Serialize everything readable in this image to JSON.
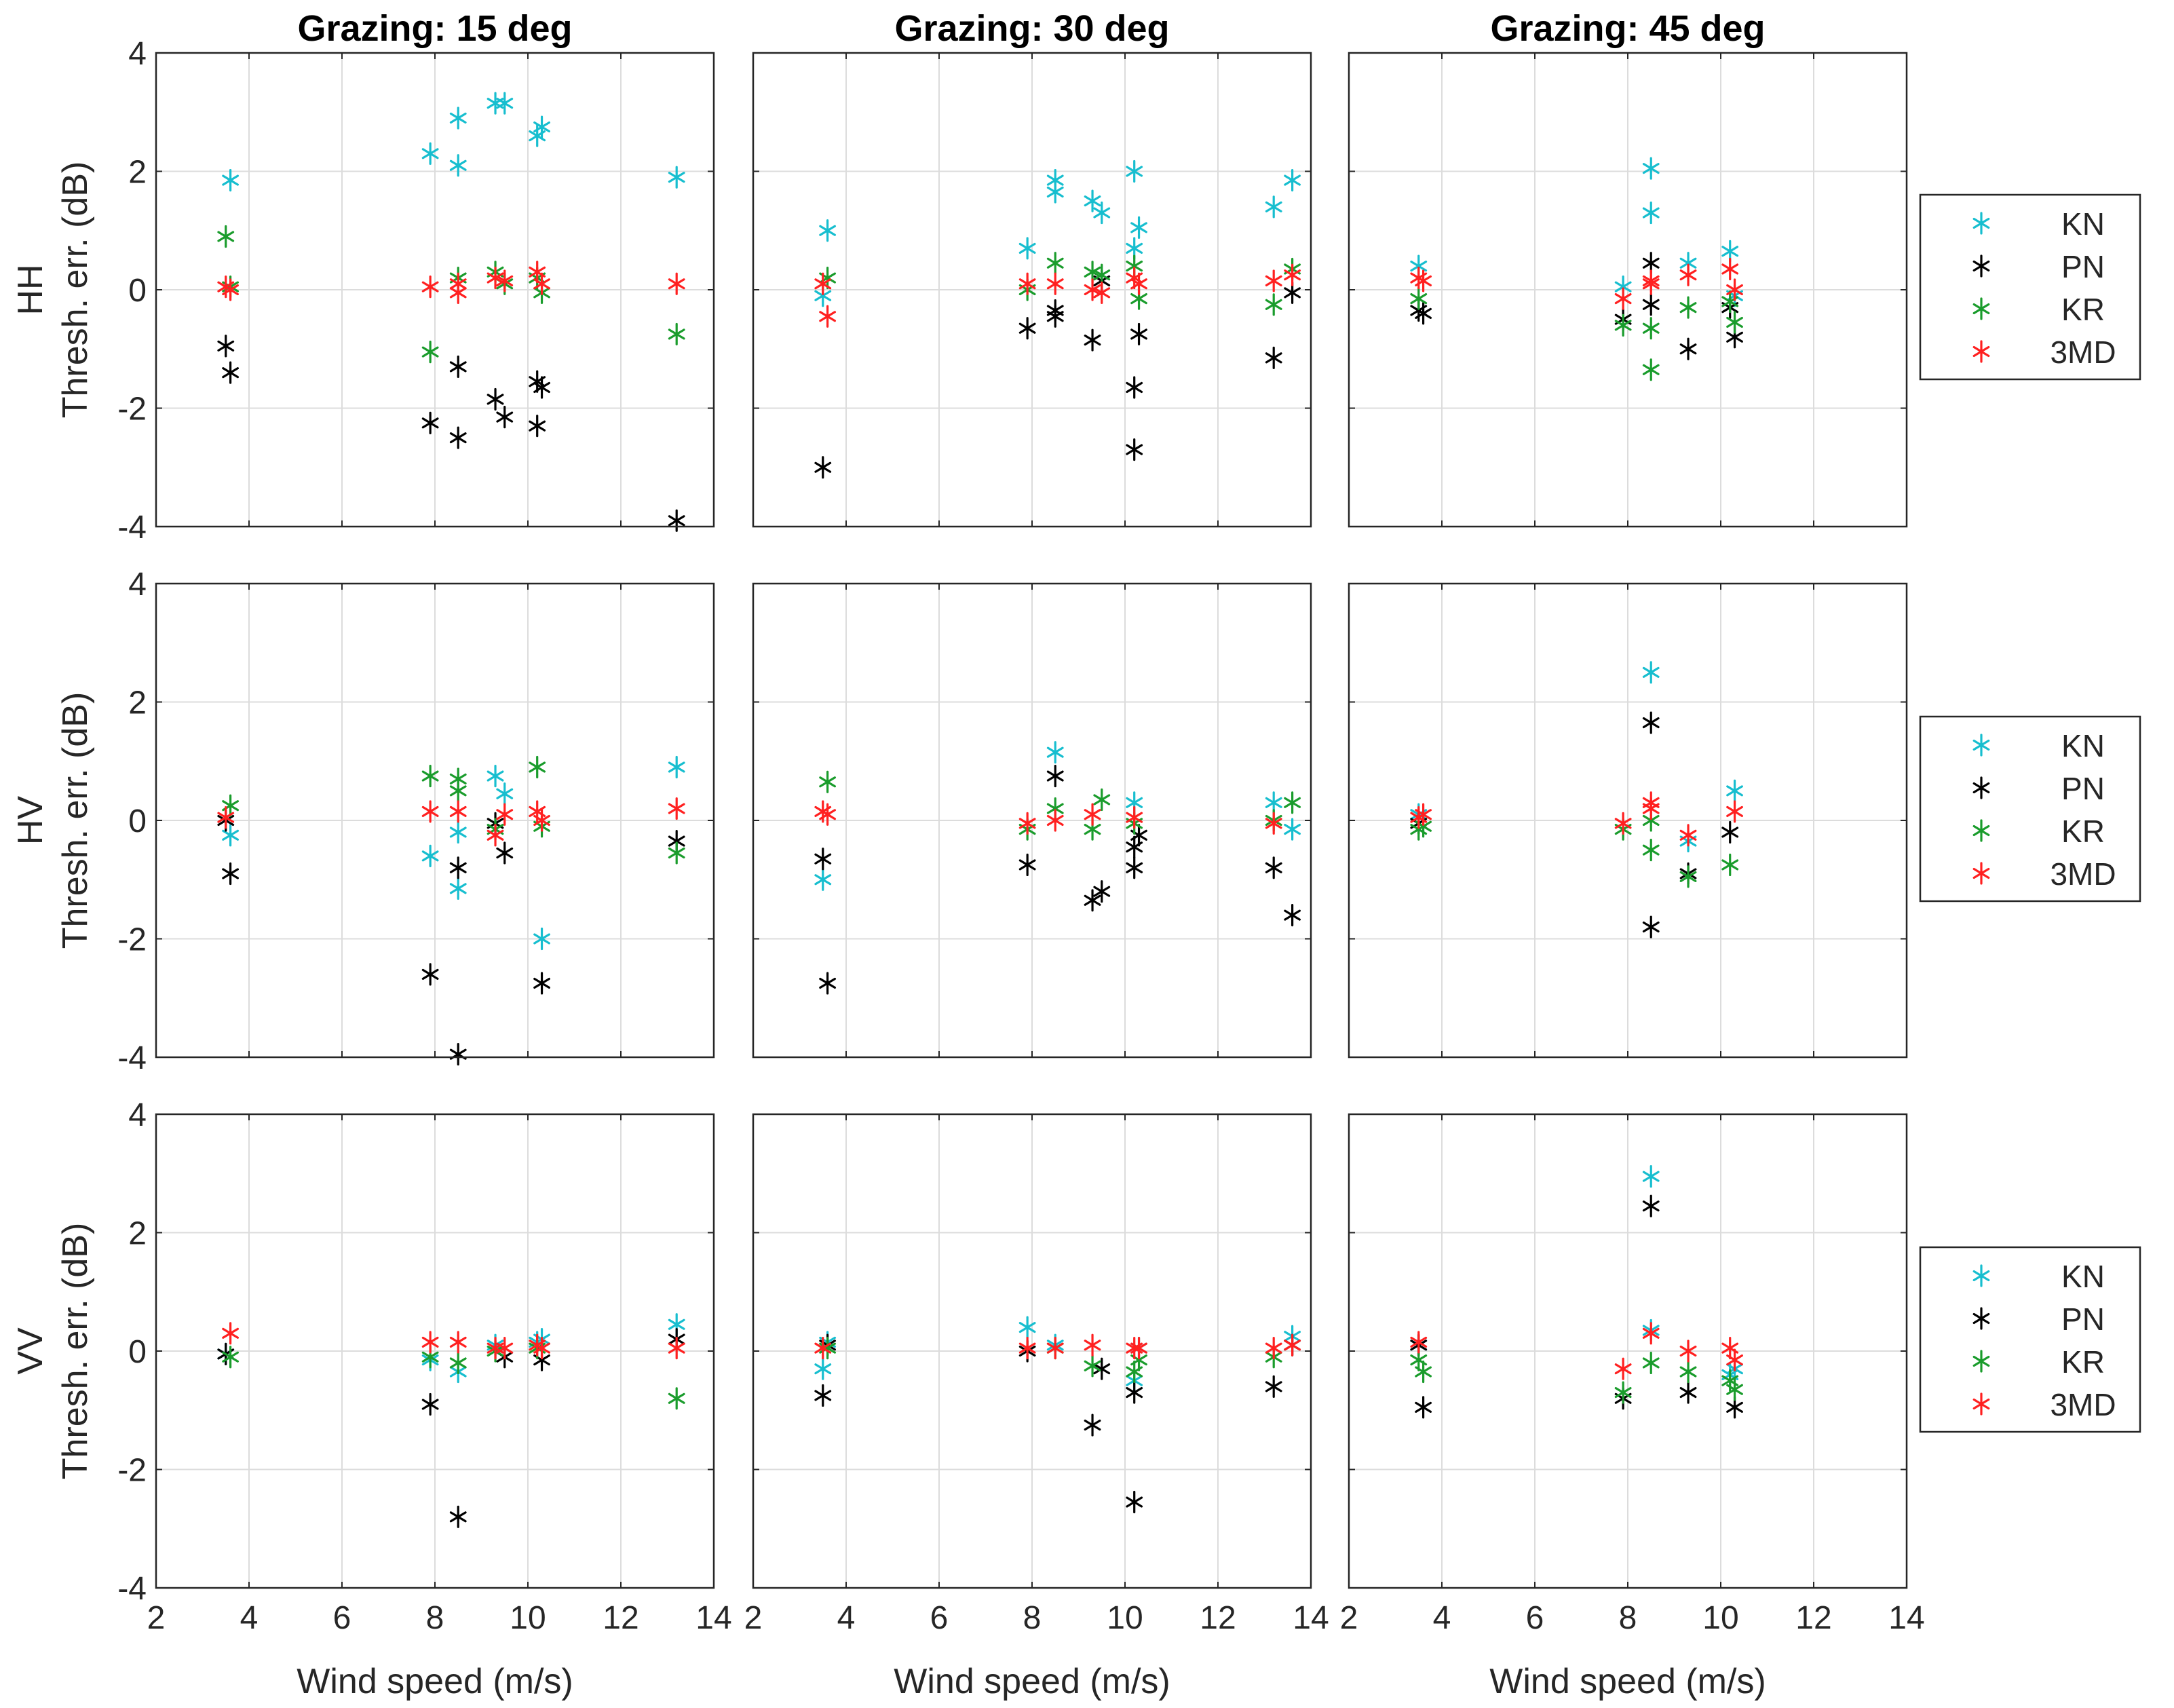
{
  "chart_data": {
    "type": "scatter",
    "layout": "3x3 grid of scatter plots; rows = polarization, columns = grazing angle",
    "column_titles": [
      "Grazing: 15 deg",
      "Grazing: 30 deg",
      "Grazing: 45 deg"
    ],
    "row_labels": [
      "HH",
      "HV",
      "VV"
    ],
    "ylabel": "Thresh. err. (dB)",
    "xlabel": "Wind speed (m/s)",
    "xlim": [
      2,
      14
    ],
    "ylim": [
      -4,
      4
    ],
    "xticks": [
      2,
      4,
      6,
      8,
      10,
      12,
      14
    ],
    "yticks": [
      -4,
      -2,
      0,
      2,
      4
    ],
    "grid": true,
    "marker": "asterisk",
    "legend": {
      "placement": "right of each row",
      "entries": [
        {
          "name": "KN",
          "color": "#17BECF"
        },
        {
          "name": "PN",
          "color": "#000000"
        },
        {
          "name": "KR",
          "color": "#1A9C2C"
        },
        {
          "name": "3MD",
          "color": "#FF2020"
        }
      ]
    },
    "panels": [
      {
        "row": "HH",
        "grazing": "Grazing: 15 deg",
        "series": [
          {
            "name": "KN",
            "x": [
              3.6,
              7.9,
              8.5,
              8.5,
              9.3,
              9.5,
              10.2,
              10.3,
              13.2
            ],
            "y": [
              1.85,
              2.3,
              2.1,
              2.9,
              3.15,
              3.15,
              2.6,
              2.75,
              1.9
            ]
          },
          {
            "name": "PN",
            "x": [
              3.5,
              3.6,
              7.9,
              8.5,
              8.5,
              9.3,
              9.5,
              10.2,
              10.2,
              10.3,
              13.2
            ],
            "y": [
              -0.95,
              -1.4,
              -2.25,
              -2.5,
              -1.3,
              -1.85,
              -2.15,
              -1.55,
              -2.3,
              -1.65,
              -3.9
            ]
          },
          {
            "name": "KR",
            "x": [
              3.5,
              3.6,
              7.9,
              8.5,
              9.3,
              9.5,
              10.2,
              10.3,
              13.2
            ],
            "y": [
              0.9,
              0.05,
              -1.05,
              0.2,
              0.3,
              0.1,
              0.2,
              -0.05,
              -0.75
            ]
          },
          {
            "name": "3MD",
            "x": [
              3.5,
              3.6,
              7.9,
              8.5,
              8.5,
              9.3,
              9.5,
              10.2,
              10.3,
              13.2
            ],
            "y": [
              0.05,
              0.0,
              0.05,
              0.1,
              -0.05,
              0.2,
              0.15,
              0.3,
              0.1,
              0.1
            ]
          }
        ]
      },
      {
        "row": "HH",
        "grazing": "Grazing: 30 deg",
        "series": [
          {
            "name": "KN",
            "x": [
              3.5,
              3.6,
              7.9,
              8.5,
              8.5,
              9.3,
              9.5,
              10.2,
              10.2,
              10.3,
              13.2,
              13.6
            ],
            "y": [
              -0.1,
              1.0,
              0.7,
              1.65,
              1.85,
              1.5,
              1.3,
              2.0,
              0.7,
              1.05,
              1.4,
              1.85
            ]
          },
          {
            "name": "PN",
            "x": [
              3.5,
              7.9,
              8.5,
              8.5,
              9.3,
              9.5,
              10.2,
              10.2,
              10.3,
              13.2,
              13.6
            ],
            "y": [
              -3.0,
              -0.65,
              -0.35,
              -0.45,
              -0.85,
              0.15,
              -1.65,
              -2.7,
              -0.75,
              -1.15,
              -0.05
            ]
          },
          {
            "name": "KR",
            "x": [
              3.6,
              7.9,
              8.5,
              9.3,
              9.5,
              10.2,
              10.3,
              13.2,
              13.6
            ],
            "y": [
              0.2,
              0.0,
              0.45,
              0.3,
              0.25,
              0.4,
              -0.15,
              -0.25,
              0.35
            ]
          },
          {
            "name": "3MD",
            "x": [
              3.5,
              3.6,
              7.9,
              8.5,
              9.3,
              9.5,
              10.2,
              10.3,
              13.2,
              13.6
            ],
            "y": [
              0.1,
              -0.45,
              0.1,
              0.1,
              0.0,
              -0.05,
              0.2,
              0.1,
              0.15,
              0.25
            ]
          }
        ]
      },
      {
        "row": "HH",
        "grazing": "Grazing: 45 deg",
        "series": [
          {
            "name": "KN",
            "x": [
              3.5,
              7.9,
              8.5,
              8.5,
              9.3,
              10.2,
              10.3
            ],
            "y": [
              0.4,
              0.05,
              2.05,
              1.3,
              0.45,
              0.65,
              -0.1
            ]
          },
          {
            "name": "PN",
            "x": [
              3.5,
              3.6,
              7.9,
              8.5,
              8.5,
              9.3,
              10.2,
              10.3
            ],
            "y": [
              -0.35,
              -0.4,
              -0.5,
              0.45,
              -0.25,
              -1.0,
              -0.3,
              -0.8
            ]
          },
          {
            "name": "KR",
            "x": [
              3.5,
              7.9,
              8.5,
              8.5,
              9.3,
              10.2,
              10.3
            ],
            "y": [
              -0.15,
              -0.6,
              -0.65,
              -1.35,
              -0.3,
              -0.2,
              -0.55
            ]
          },
          {
            "name": "3MD",
            "x": [
              3.5,
              3.6,
              7.9,
              8.5,
              8.5,
              9.3,
              10.2,
              10.3
            ],
            "y": [
              0.2,
              0.15,
              -0.15,
              0.1,
              0.15,
              0.25,
              0.35,
              0.0
            ]
          }
        ]
      },
      {
        "row": "HV",
        "grazing": "Grazing: 15 deg",
        "series": [
          {
            "name": "KN",
            "x": [
              3.6,
              7.9,
              8.5,
              8.5,
              9.3,
              9.5,
              10.3,
              13.2
            ],
            "y": [
              -0.25,
              -0.6,
              -0.2,
              -1.15,
              0.75,
              0.45,
              -2.0,
              0.9
            ]
          },
          {
            "name": "PN",
            "x": [
              3.5,
              3.6,
              7.9,
              8.5,
              8.5,
              9.3,
              9.5,
              10.3,
              13.2
            ],
            "y": [
              0.0,
              -0.9,
              -2.6,
              -0.8,
              -3.95,
              -0.05,
              -0.55,
              -2.75,
              -0.35
            ]
          },
          {
            "name": "KR",
            "x": [
              3.6,
              7.9,
              8.5,
              8.5,
              9.3,
              10.2,
              10.3,
              13.2
            ],
            "y": [
              0.25,
              0.75,
              0.7,
              0.5,
              -0.15,
              0.9,
              -0.1,
              -0.55
            ]
          },
          {
            "name": "3MD",
            "x": [
              3.5,
              7.9,
              8.5,
              9.3,
              9.5,
              10.2,
              10.3,
              13.2
            ],
            "y": [
              0.05,
              0.15,
              0.15,
              -0.25,
              0.1,
              0.15,
              0.0,
              0.2
            ]
          }
        ]
      },
      {
        "row": "HV",
        "grazing": "Grazing: 30 deg",
        "series": [
          {
            "name": "KN",
            "x": [
              3.5,
              8.5,
              10.2,
              13.2,
              13.6
            ],
            "y": [
              -1.0,
              1.15,
              0.3,
              0.3,
              -0.15
            ]
          },
          {
            "name": "PN",
            "x": [
              3.5,
              3.6,
              7.9,
              8.5,
              9.3,
              9.5,
              10.2,
              10.2,
              10.3,
              13.2,
              13.6
            ],
            "y": [
              -0.65,
              -2.75,
              -0.75,
              0.75,
              -1.35,
              -1.2,
              -0.8,
              -0.45,
              -0.25,
              -0.8,
              -1.6
            ]
          },
          {
            "name": "KR",
            "x": [
              3.6,
              7.9,
              8.5,
              9.3,
              9.5,
              10.2,
              13.2,
              13.6
            ],
            "y": [
              0.65,
              -0.15,
              0.2,
              -0.15,
              0.35,
              -0.05,
              0.0,
              0.3
            ]
          },
          {
            "name": "3MD",
            "x": [
              3.5,
              3.6,
              7.9,
              8.5,
              9.3,
              10.2,
              13.2
            ],
            "y": [
              0.15,
              0.1,
              -0.05,
              0.0,
              0.1,
              0.05,
              -0.05
            ]
          }
        ]
      },
      {
        "row": "HV",
        "grazing": "Grazing: 45 deg",
        "series": [
          {
            "name": "KN",
            "x": [
              3.5,
              8.5,
              9.3,
              10.3
            ],
            "y": [
              0.1,
              2.5,
              -0.35,
              0.5
            ]
          },
          {
            "name": "PN",
            "x": [
              3.5,
              8.5,
              8.5,
              9.3,
              10.2
            ],
            "y": [
              -0.05,
              1.65,
              -1.8,
              -0.9,
              -0.2
            ]
          },
          {
            "name": "KR",
            "x": [
              3.5,
              3.6,
              7.9,
              8.5,
              8.5,
              9.3,
              10.2
            ],
            "y": [
              -0.15,
              -0.1,
              -0.15,
              -0.5,
              0.0,
              -0.95,
              -0.75
            ]
          },
          {
            "name": "3MD",
            "x": [
              3.5,
              3.6,
              7.9,
              8.5,
              8.5,
              9.3,
              10.3
            ],
            "y": [
              0.05,
              0.1,
              -0.05,
              0.3,
              0.2,
              -0.25,
              0.15
            ]
          }
        ]
      },
      {
        "row": "VV",
        "grazing": "Grazing: 15 deg",
        "series": [
          {
            "name": "KN",
            "x": [
              3.5,
              7.9,
              8.5,
              9.3,
              10.2,
              10.3,
              13.2
            ],
            "y": [
              -0.05,
              -0.15,
              -0.35,
              0.1,
              0.15,
              0.2,
              0.45
            ]
          },
          {
            "name": "PN",
            "x": [
              3.5,
              7.9,
              8.5,
              9.5,
              10.3,
              13.2
            ],
            "y": [
              -0.05,
              -0.9,
              -2.8,
              -0.1,
              -0.15,
              0.2
            ]
          },
          {
            "name": "KR",
            "x": [
              3.6,
              7.9,
              8.5,
              9.3,
              10.2,
              13.2
            ],
            "y": [
              -0.1,
              -0.1,
              -0.2,
              0.0,
              0.05,
              -0.8
            ]
          },
          {
            "name": "3MD",
            "x": [
              3.6,
              7.9,
              8.5,
              9.3,
              9.5,
              10.2,
              10.3,
              13.2
            ],
            "y": [
              0.3,
              0.15,
              0.15,
              0.05,
              0.05,
              0.1,
              0.05,
              0.05
            ]
          }
        ]
      },
      {
        "row": "VV",
        "grazing": "Grazing: 30 deg",
        "series": [
          {
            "name": "KN",
            "x": [
              3.5,
              3.6,
              7.9,
              8.5,
              10.2,
              10.3,
              13.6
            ],
            "y": [
              -0.3,
              0.15,
              0.4,
              0.1,
              -0.5,
              0.05,
              0.25
            ]
          },
          {
            "name": "PN",
            "x": [
              3.5,
              3.6,
              7.9,
              9.3,
              9.5,
              10.2,
              10.2,
              13.2,
              13.6
            ],
            "y": [
              -0.75,
              0.1,
              0.0,
              -1.25,
              -0.3,
              -0.7,
              -2.55,
              -0.6,
              0.1
            ]
          },
          {
            "name": "KR",
            "x": [
              3.6,
              8.5,
              9.3,
              10.2,
              10.3,
              13.2
            ],
            "y": [
              0.05,
              0.05,
              -0.25,
              -0.35,
              -0.15,
              -0.1
            ]
          },
          {
            "name": "3MD",
            "x": [
              3.5,
              7.9,
              8.5,
              9.3,
              10.2,
              10.3,
              13.2,
              13.6
            ],
            "y": [
              0.05,
              0.05,
              0.05,
              0.1,
              0.05,
              0.05,
              0.05,
              0.1
            ]
          }
        ]
      },
      {
        "row": "VV",
        "grazing": "Grazing: 45 deg",
        "series": [
          {
            "name": "KN",
            "x": [
              3.5,
              8.5,
              8.5,
              10.2,
              10.3
            ],
            "y": [
              0.1,
              2.95,
              0.35,
              -0.4,
              -0.3
            ]
          },
          {
            "name": "PN",
            "x": [
              3.5,
              3.6,
              7.9,
              8.5,
              9.3,
              10.3
            ],
            "y": [
              0.1,
              -0.95,
              -0.8,
              2.45,
              -0.7,
              -0.95
            ]
          },
          {
            "name": "KR",
            "x": [
              3.5,
              3.6,
              7.9,
              8.5,
              9.3,
              10.2,
              10.3
            ],
            "y": [
              -0.15,
              -0.35,
              -0.7,
              -0.2,
              -0.35,
              -0.5,
              -0.65
            ]
          },
          {
            "name": "3MD",
            "x": [
              3.5,
              7.9,
              8.5,
              9.3,
              10.2,
              10.3
            ],
            "y": [
              0.15,
              -0.3,
              0.3,
              0.0,
              0.05,
              -0.15
            ]
          }
        ]
      }
    ]
  }
}
